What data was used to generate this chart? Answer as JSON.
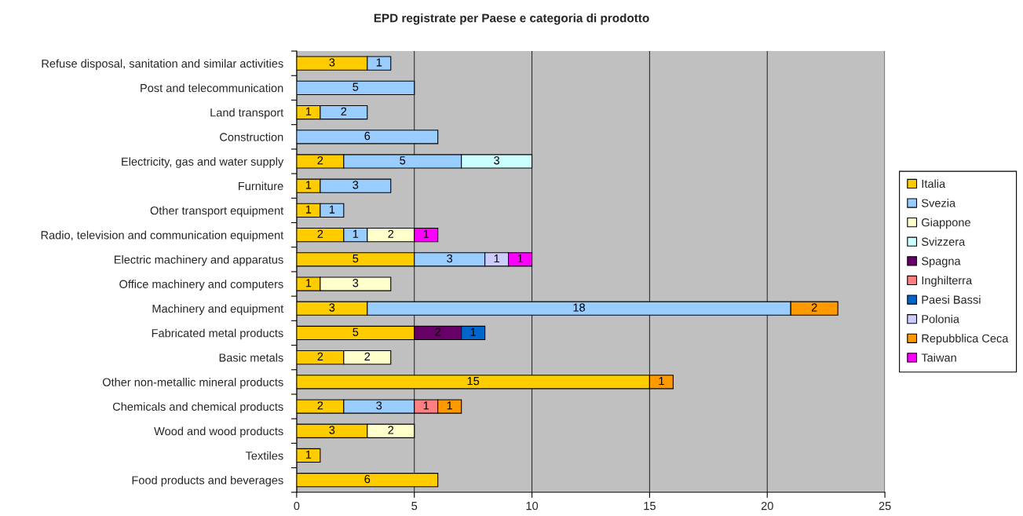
{
  "chart_data": {
    "type": "bar",
    "orientation": "horizontal",
    "stacked": true,
    "title": "EPD registrate per Paese e categoria di prodotto",
    "categories": [
      "Refuse disposal, sanitation and similar activities",
      "Post and telecommunication",
      "Land transport",
      "Construction",
      "Electricity, gas and water supply",
      "Furniture",
      "Other transport equipment",
      "Radio, television and communication equipment",
      "Electric machinery and apparatus",
      "Office machinery and computers",
      "Machinery and equipment",
      "Fabricated metal products",
      "Basic metals",
      "Other non-metallic mineral products",
      "Chemicals and chemical products",
      "Wood and wood products",
      "Textiles",
      "Food products and beverages"
    ],
    "series": [
      {
        "name": "Italia",
        "color": "#ffcc00",
        "values": [
          3,
          null,
          1,
          null,
          2,
          1,
          1,
          2,
          5,
          1,
          3,
          5,
          2,
          15,
          2,
          3,
          1,
          6
        ]
      },
      {
        "name": "Svezia",
        "color": "#99ccff",
        "values": [
          1,
          5,
          2,
          6,
          5,
          3,
          1,
          1,
          3,
          null,
          18,
          null,
          null,
          null,
          3,
          null,
          null,
          null
        ]
      },
      {
        "name": "Giappone",
        "color": "#ffffcc",
        "values": [
          null,
          null,
          null,
          null,
          null,
          null,
          null,
          2,
          null,
          3,
          null,
          null,
          2,
          null,
          null,
          2,
          null,
          null
        ]
      },
      {
        "name": "Svizzera",
        "color": "#ccffff",
        "values": [
          null,
          null,
          null,
          null,
          3,
          null,
          null,
          null,
          null,
          null,
          null,
          null,
          null,
          null,
          null,
          null,
          null,
          null
        ]
      },
      {
        "name": "Spagna",
        "color": "#660066",
        "values": [
          null,
          null,
          null,
          null,
          null,
          null,
          null,
          null,
          null,
          null,
          null,
          2,
          null,
          null,
          null,
          null,
          null,
          null
        ]
      },
      {
        "name": "Inghilterra",
        "color": "#ff8080",
        "values": [
          null,
          null,
          null,
          null,
          null,
          null,
          null,
          null,
          null,
          null,
          null,
          null,
          null,
          null,
          1,
          null,
          null,
          null
        ]
      },
      {
        "name": "Paesi Bassi",
        "color": "#0066cc",
        "values": [
          null,
          null,
          null,
          null,
          null,
          null,
          null,
          null,
          null,
          null,
          null,
          1,
          null,
          null,
          null,
          null,
          null,
          null
        ]
      },
      {
        "name": "Polonia",
        "color": "#ccccff",
        "values": [
          null,
          null,
          null,
          null,
          null,
          null,
          null,
          null,
          1,
          null,
          null,
          null,
          null,
          null,
          null,
          null,
          null,
          null
        ]
      },
      {
        "name": "Repubblica Ceca",
        "color": "#ff9900",
        "values": [
          null,
          null,
          null,
          null,
          null,
          null,
          null,
          null,
          null,
          null,
          2,
          null,
          null,
          1,
          1,
          null,
          null,
          null
        ]
      },
      {
        "name": "Taiwan",
        "color": "#ff00ff",
        "values": [
          null,
          null,
          null,
          null,
          null,
          null,
          null,
          1,
          1,
          null,
          null,
          null,
          null,
          null,
          null,
          null,
          null,
          null
        ]
      }
    ],
    "xlim": [
      0,
      25
    ],
    "xticks": [
      0,
      5,
      10,
      15,
      20,
      25
    ],
    "grid": "x",
    "legend": "right",
    "data_labels": true
  }
}
